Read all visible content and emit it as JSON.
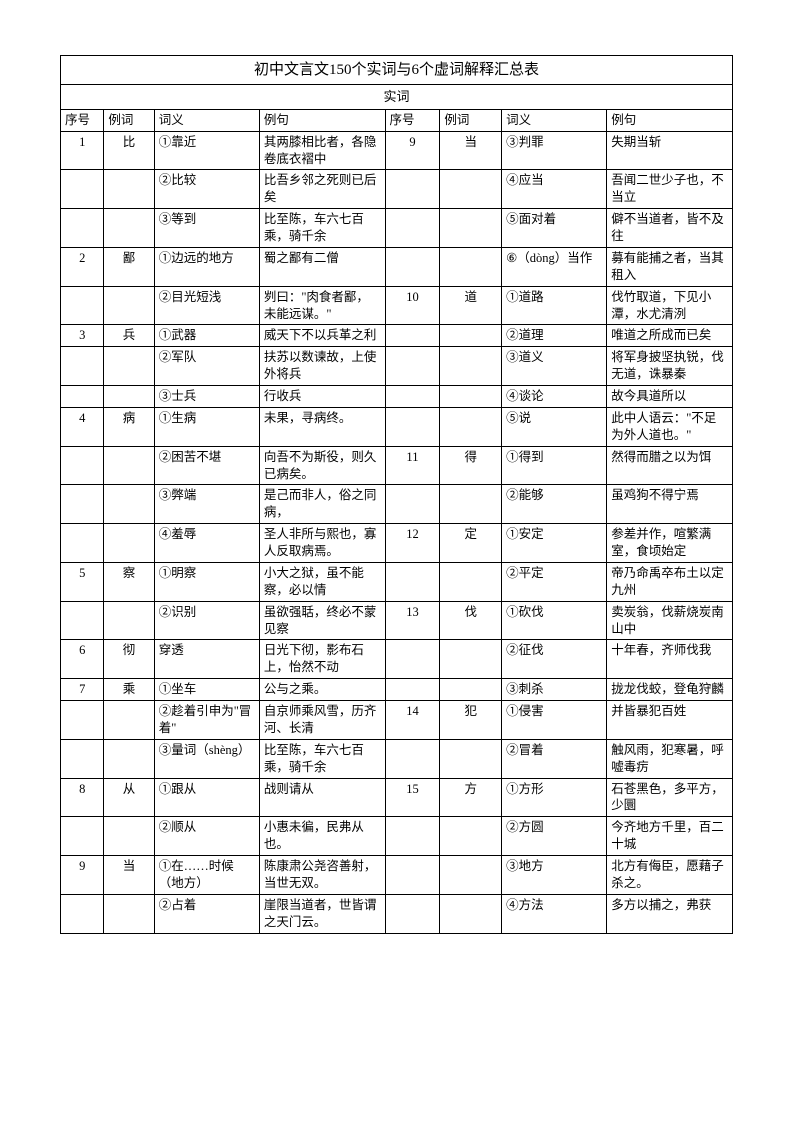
{
  "title": "初中文言文150个实词与6个虚词解释汇总表",
  "subtitle": "实词",
  "headers": {
    "seq": "序号",
    "word": "例词",
    "meaning": "词义",
    "example": "例句"
  },
  "rows": [
    {
      "l": [
        "1",
        "比",
        "①靠近",
        "其两膝相比者，各隐卷底衣褶中"
      ],
      "r": [
        "9",
        "当",
        "③判罪",
        "失期当斩"
      ]
    },
    {
      "l": [
        "",
        "",
        "②比较",
        "比吾乡邻之死则已后矣"
      ],
      "r": [
        "",
        "",
        "④应当",
        "吾闻二世少子也，不当立"
      ]
    },
    {
      "l": [
        "",
        "",
        "③等到",
        "比至陈，车六七百乘，骑千余"
      ],
      "r": [
        "",
        "",
        "⑤面对着",
        "僻不当道者，皆不及往"
      ]
    },
    {
      "l": [
        "2",
        "鄙",
        "①边远的地方",
        "蜀之鄙有二僧"
      ],
      "r": [
        "",
        "",
        "⑥（dòng）当作",
        "募有能捕之者，当其租入"
      ]
    },
    {
      "l": [
        "",
        "",
        "②目光短浅",
        "刿曰：\"肉食者鄙，未能远谋。\""
      ],
      "r": [
        "10",
        "道",
        "①道路",
        "伐竹取道，下见小潭，水尤清洌"
      ]
    },
    {
      "l": [
        "3",
        "兵",
        "①武器",
        "威天下不以兵革之利"
      ],
      "r": [
        "",
        "",
        "②道理",
        "唯道之所成而已矣"
      ]
    },
    {
      "l": [
        "",
        "",
        "②军队",
        "扶苏以数谏故，上使外将兵"
      ],
      "r": [
        "",
        "",
        "③道义",
        "将军身披坚执锐，伐无道，诛暴秦"
      ]
    },
    {
      "l": [
        "",
        "",
        "③士兵",
        "行收兵"
      ],
      "r": [
        "",
        "",
        "④谈论",
        "故今具道所以"
      ]
    },
    {
      "l": [
        "4",
        "病",
        "①生病",
        "未果，寻病终。"
      ],
      "r": [
        "",
        "",
        "⑤说",
        "此中人语云：\"不足为外人道也。\""
      ]
    },
    {
      "l": [
        "",
        "",
        "②困苦不堪",
        "向吾不为斯役，则久已病矣。"
      ],
      "r": [
        "11",
        "得",
        "①得到",
        "然得而腊之以为饵"
      ]
    },
    {
      "l": [
        "",
        "",
        "③弊端",
        "是己而非人，俗之同病，"
      ],
      "r": [
        "",
        "",
        "②能够",
        "虽鸡狗不得宁焉"
      ]
    },
    {
      "l": [
        "",
        "",
        "④羞辱",
        "圣人非所与熙也，寡人反取病焉。"
      ],
      "r": [
        "12",
        "定",
        "①安定",
        "参差并作，喧繁满室，食顷始定"
      ]
    },
    {
      "l": [
        "5",
        "察",
        "①明察",
        "小大之狱，虽不能察，必以情"
      ],
      "r": [
        "",
        "",
        "②平定",
        "帝乃命禹卒布土以定九州"
      ]
    },
    {
      "l": [
        "",
        "",
        "②识别",
        "虽欲强聒，终必不蒙见察"
      ],
      "r": [
        "13",
        "伐",
        "①砍伐",
        "卖炭翁，伐薪烧炭南山中"
      ]
    },
    {
      "l": [
        "6",
        "彻",
        "穿透",
        "日光下彻，影布石上，怡然不动"
      ],
      "r": [
        "",
        "",
        "②征伐",
        "十年春，齐师伐我"
      ]
    },
    {
      "l": [
        "7",
        "乘",
        "①坐车",
        "公与之乘。"
      ],
      "r": [
        "",
        "",
        "③刺杀",
        "拢龙伐蛟，登龟狩麟"
      ]
    },
    {
      "l": [
        "",
        "",
        "②趁着引申为\"冒着\"",
        "自京师乘风雪，历齐河、长清"
      ],
      "r": [
        "14",
        "犯",
        "①侵害",
        "并皆暴犯百姓"
      ]
    },
    {
      "l": [
        "",
        "",
        "③量词（shèng）",
        "比至陈，车六七百乘，骑千余"
      ],
      "r": [
        "",
        "",
        "②冒着",
        "触风雨，犯寒暑，呼嘘毒疠"
      ]
    },
    {
      "l": [
        "8",
        "从",
        "①跟从",
        "战则请从"
      ],
      "r": [
        "15",
        "方",
        "①方形",
        "石苍黑色，多平方，少圜"
      ]
    },
    {
      "l": [
        "",
        "",
        "②顺从",
        "小惠未徧，民弗从也。"
      ],
      "r": [
        "",
        "",
        "②方圆",
        "今齐地方千里，百二十城"
      ]
    },
    {
      "l": [
        "9",
        "当",
        "①在……时候（地方）",
        "陈康肃公尧咨善射，当世无双。"
      ],
      "r": [
        "",
        "",
        "③地方",
        "北方有侮臣，愿藉子杀之。"
      ]
    },
    {
      "l": [
        "",
        "",
        "②占着",
        "崖限当道者，世皆谓之天门云。"
      ],
      "r": [
        "",
        "",
        "④方法",
        "多方以捕之，弗获"
      ]
    }
  ]
}
